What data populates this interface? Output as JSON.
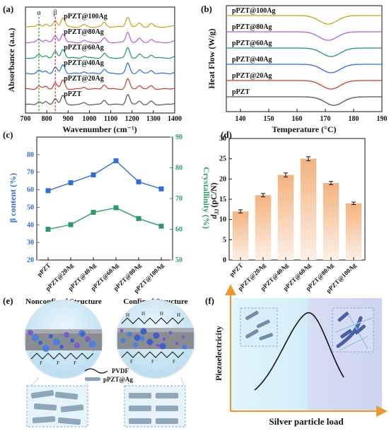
{
  "chart_data": [
    {
      "panel": "(a)",
      "type": "line",
      "xlabel": "Wavenumber (cm⁻¹)",
      "ylabel": "Absorbance (a.u.)",
      "xlim": [
        700,
        1400
      ],
      "xticks": [
        "700",
        "800",
        "900",
        "1000",
        "1100",
        "1200",
        "1300",
        "1400"
      ],
      "markers": [
        {
          "label": "α",
          "x": 763,
          "color": "#2e9e2e"
        },
        {
          "label": "β",
          "x": 840,
          "color": "#e03030"
        }
      ],
      "series": [
        {
          "name": "pPZT",
          "color": "#555555"
        },
        {
          "name": "pPZT@20Ag",
          "color": "#cc3b2b"
        },
        {
          "name": "pPZT@40Ag",
          "color": "#2b6fd6"
        },
        {
          "name": "pPZT@60Ag",
          "color": "#1f9a66"
        },
        {
          "name": "pPZT@80Ag",
          "color": "#b05ed8"
        },
        {
          "name": "pPZT@100Ag",
          "color": "#c9a21a"
        }
      ]
    },
    {
      "panel": "(b)",
      "type": "line",
      "xlabel": "Temperature (°C)",
      "ylabel": "Heat Flow (W/g)",
      "xlim": [
        135,
        190
      ],
      "xticks": [
        "140",
        "150",
        "160",
        "170",
        "180",
        "190"
      ],
      "series": [
        {
          "name": "pPZT@100Ag",
          "color": "#c9a21a",
          "peak": 171
        },
        {
          "name": "pPZT@80Ag",
          "color": "#b05ed8",
          "peak": 171
        },
        {
          "name": "pPZT@60Ag",
          "color": "#1f9a66",
          "peak": 172
        },
        {
          "name": "pPZT@40Ag",
          "color": "#2b6fd6",
          "peak": 172
        },
        {
          "name": "pPZT@20Ag",
          "color": "#cc3b2b",
          "peak": 172
        },
        {
          "name": "pPZT",
          "color": "#555555",
          "peak": 173
        }
      ]
    },
    {
      "panel": "(c)",
      "type": "line",
      "categories": [
        "pPZT",
        "pPZT@20Ag",
        "pPZT@40Ag",
        "pPZT@60Ag",
        "pPZT@80Ag",
        "pPZT@100Ag"
      ],
      "ylabel": "β content (%)",
      "y2label": "Crystallinity (%)",
      "ylim": [
        20,
        90
      ],
      "yticks": [
        "20",
        "30",
        "40",
        "50",
        "60",
        "70",
        "80"
      ],
      "y2lim": [
        50,
        90
      ],
      "y2ticks": [
        "50",
        "60",
        "70",
        "80",
        "90"
      ],
      "series": [
        {
          "name": "β content",
          "axis": "left",
          "color": "#2f6fd6",
          "values": [
            59.5,
            64,
            68.5,
            76.5,
            64.5,
            60.5
          ]
        },
        {
          "name": "Crystallinity",
          "axis": "right",
          "color": "#2e9a6a",
          "values": [
            60,
            61.5,
            65.5,
            67,
            63.5,
            61
          ]
        }
      ]
    },
    {
      "panel": "(d)",
      "type": "bar",
      "categories": [
        "pPZT",
        "pPZT@20Ag",
        "pPZT@40Ag",
        "pPZT@60Ag",
        "pPZT@80Ag",
        "pPZT@100Ag"
      ],
      "ylabel": "d33 (pC/N)",
      "ylabel_main": "d",
      "ylabel_sub": "33",
      "ylabel_unit": "(pC/N)",
      "ylim": [
        0,
        30
      ],
      "yticks": [
        "0",
        "5",
        "10",
        "15",
        "20",
        "25",
        "30"
      ],
      "values": [
        12,
        16,
        21,
        25,
        19,
        14
      ],
      "errors": [
        0.4,
        0.4,
        0.5,
        0.5,
        0.4,
        0.3
      ]
    }
  ],
  "panel_e": {
    "label": "(e)",
    "left_title": "Nonconfined Structure",
    "right_title": "Confined Structure",
    "legend_pvdf": "PVDF",
    "legend_particle": "pPZT@Ag",
    "atom_h": "H",
    "atom_f": "F"
  },
  "panel_f": {
    "label": "(f)",
    "ylabel": "Piezoelectricity",
    "xlabel": "Silver particle load"
  },
  "colors": {
    "blue": "#2f6fd6",
    "green": "#2e9a6a",
    "bar_top": "#f4b27e",
    "arrow": "#e89b2e"
  }
}
